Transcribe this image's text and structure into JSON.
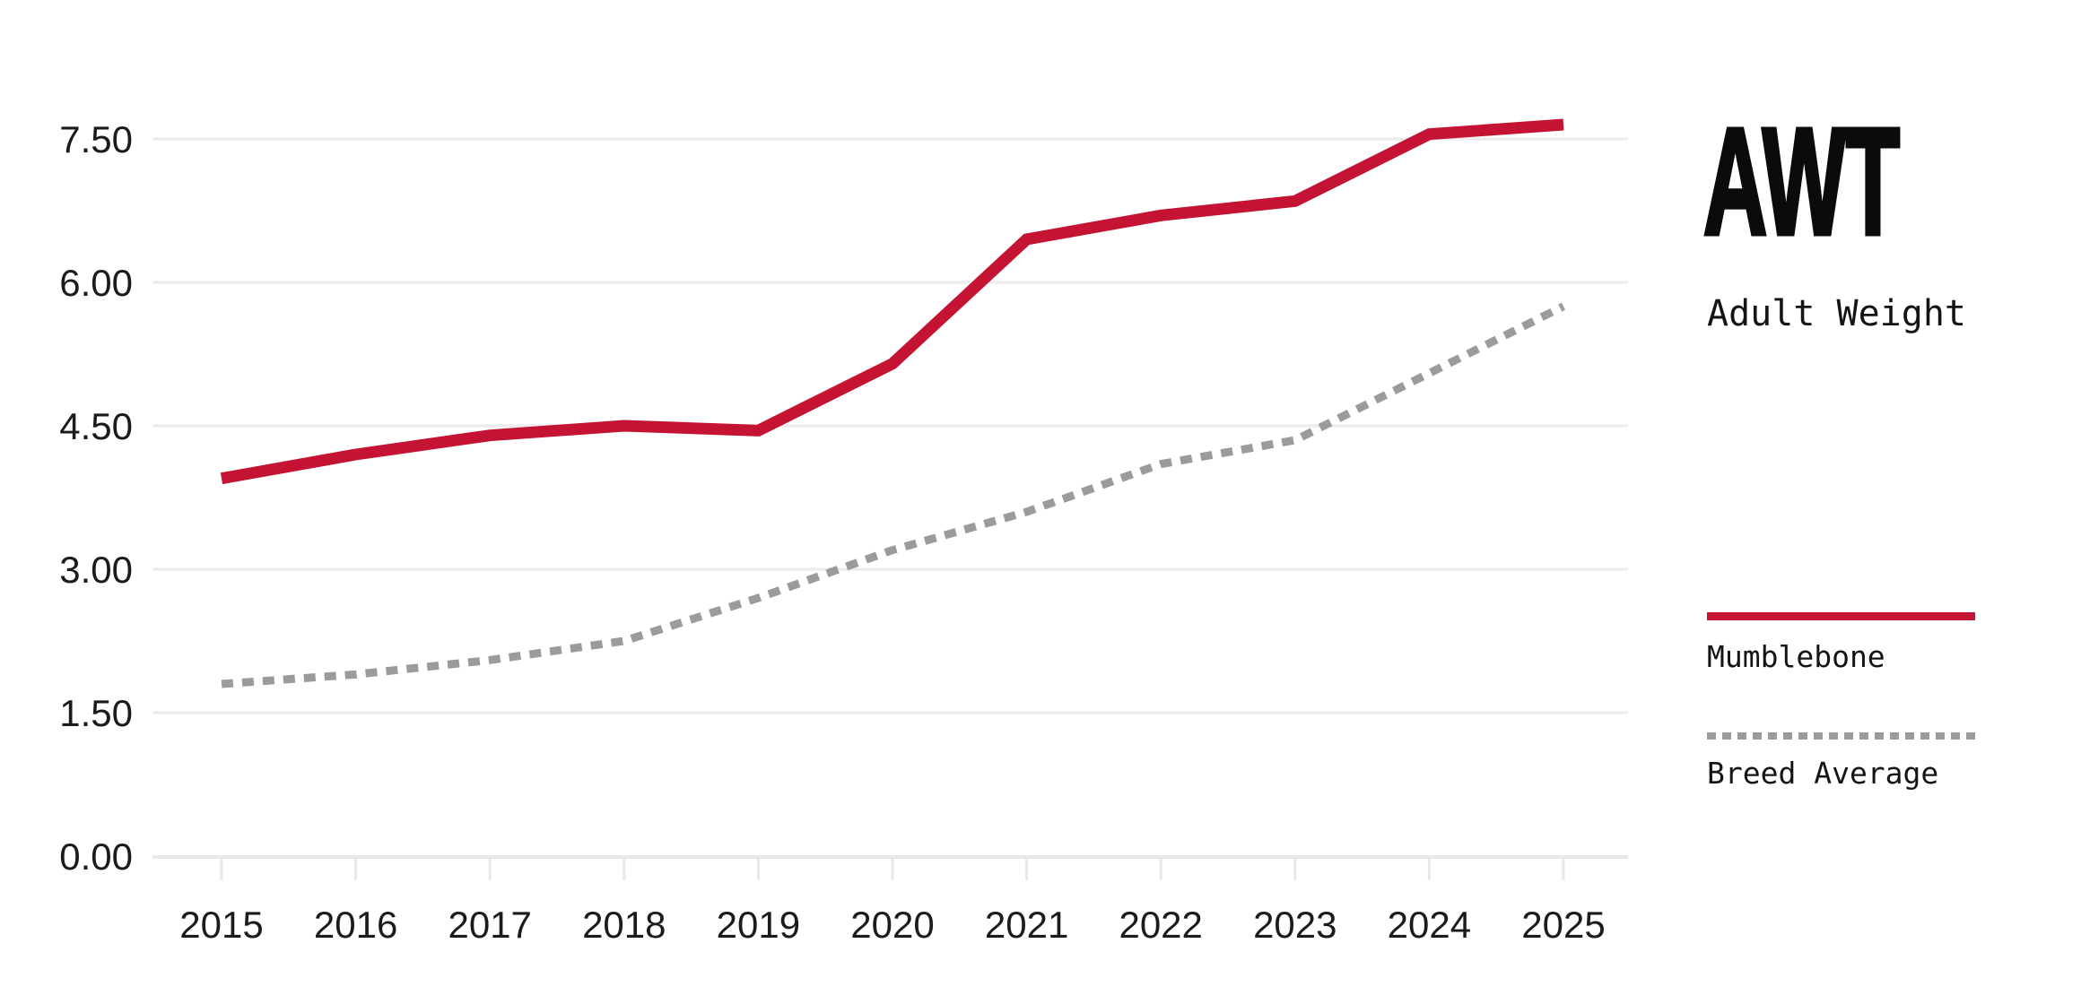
{
  "title": {
    "abbr": "AWT",
    "subtitle": "Adult Weight"
  },
  "legend": {
    "items": [
      {
        "label": "Mumblebone",
        "style": "solid",
        "color": "#C41333"
      },
      {
        "label": "Breed Average",
        "style": "dotted",
        "color": "#9B9B9B"
      }
    ]
  },
  "colors": {
    "series_primary": "#C41333",
    "series_secondary": "#9B9B9B",
    "gridline": "#EDEDF0",
    "axis": "#E8E8EB",
    "tick_label": "#1B1B1B",
    "background": "#FFFFFF"
  },
  "chart_data": {
    "type": "line",
    "title": "AWT - Adult Weight",
    "xlabel": "",
    "ylabel": "",
    "x": [
      2015,
      2016,
      2017,
      2018,
      2019,
      2020,
      2021,
      2022,
      2023,
      2024,
      2025
    ],
    "x_tick_labels": [
      "2015",
      "2016",
      "2017",
      "2018",
      "2019",
      "2020",
      "2021",
      "2022",
      "2023",
      "2024",
      "2025"
    ],
    "series": [
      {
        "name": "Mumblebone",
        "color": "#C41333",
        "line_style": "solid",
        "values": [
          3.95,
          4.2,
          4.4,
          4.5,
          4.45,
          5.15,
          6.45,
          6.7,
          6.85,
          7.55,
          7.65
        ]
      },
      {
        "name": "Breed Average",
        "color": "#9B9B9B",
        "line_style": "dotted",
        "values": [
          1.8,
          1.9,
          2.05,
          2.25,
          2.7,
          3.2,
          3.6,
          4.1,
          4.35,
          5.05,
          5.75
        ]
      }
    ],
    "y_ticks": [
      {
        "label": "0.00",
        "value": 0.0
      },
      {
        "label": "1.50",
        "value": 1.5
      },
      {
        "label": "3.00",
        "value": 3.0
      },
      {
        "label": "4.50",
        "value": 4.5
      },
      {
        "label": "6.00",
        "value": 6.0
      },
      {
        "label": "7.50",
        "value": 7.5
      }
    ],
    "ylim": [
      0,
      8.1
    ],
    "grid": true,
    "legend_position": "right"
  }
}
